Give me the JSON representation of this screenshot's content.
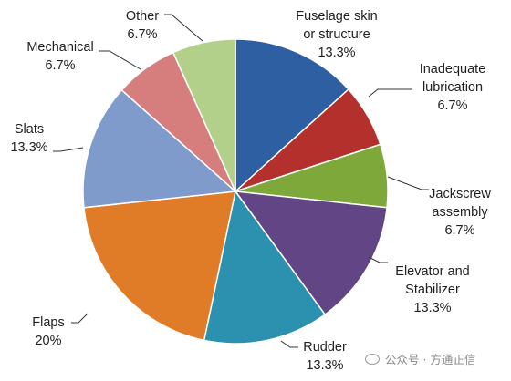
{
  "chart_data": {
    "type": "pie",
    "categories": [
      "Fuselage skin or structure",
      "Inadequate lubrication",
      "Jackscrew assembly",
      "Elevator and Stabilizer",
      "Rudder",
      "Flaps",
      "Slats",
      "Mechanical",
      "Other"
    ],
    "values": [
      13.3,
      6.7,
      6.7,
      13.3,
      13.3,
      20,
      13.3,
      6.7,
      6.7
    ],
    "value_labels": [
      "13.3%",
      "6.7%",
      "6.7%",
      "13.3%",
      "13.3%",
      "20%",
      "13.3%",
      "6.7%",
      "6.7%"
    ],
    "label_lines": [
      [
        "Fuselage skin",
        "or structure",
        "13.3%"
      ],
      [
        "Inadequate",
        "lubrication",
        "6.7%"
      ],
      [
        "Jackscrew",
        "assembly",
        "6.7%"
      ],
      [
        "Elevator and",
        "Stabilizer",
        "13.3%"
      ],
      [
        "Rudder",
        "13.3%"
      ],
      [
        "Flaps",
        "20%"
      ],
      [
        "Slats",
        "13.3%"
      ],
      [
        "Mechanical",
        "6.7%"
      ],
      [
        "Other",
        "6.7%"
      ]
    ],
    "colors": [
      "#2E5FA3",
      "#B3302C",
      "#7FA83A",
      "#614585",
      "#2B91AE",
      "#E07B28",
      "#7F9BCB",
      "#D67E7E",
      "#B2D08A"
    ],
    "start_angle_deg": 0,
    "direction": "clockwise",
    "legend": "none",
    "title": ""
  },
  "watermark": {
    "text": "公众号 · 方通正信"
  }
}
